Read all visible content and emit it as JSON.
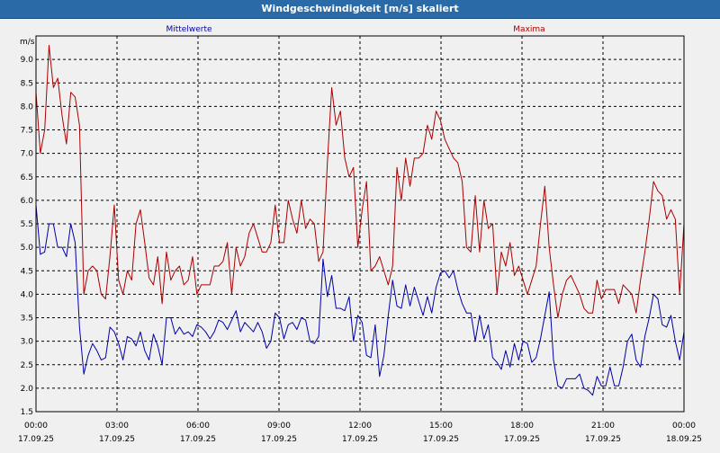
{
  "window": {
    "title": "Windgeschwindigkeit [m/s] skaliert"
  },
  "colors": {
    "mittel": "#0000aa",
    "maxima": "#aa0000",
    "grid": "#000000",
    "title_bar": "#2a6aa6"
  },
  "chart_data": {
    "type": "line",
    "title": "Windgeschwindigkeit [m/s] skaliert",
    "ylabel": "m/s",
    "xlabel": "",
    "ylim": [
      1.5,
      9.5
    ],
    "xlim_hours": [
      0,
      24
    ],
    "grid": true,
    "y_ticks": [
      "1.5",
      "2.0",
      "2.5",
      "3.0",
      "3.5",
      "4.0",
      "4.5",
      "5.0",
      "5.5",
      "6.0",
      "6.5",
      "7.0",
      "7.5",
      "8.0",
      "8.5",
      "9.0"
    ],
    "x_ticks": [
      {
        "time": "00:00",
        "date": "17.09.25"
      },
      {
        "time": "03:00",
        "date": "17.09.25"
      },
      {
        "time": "06:00",
        "date": "17.09.25"
      },
      {
        "time": "09:00",
        "date": "17.09.25"
      },
      {
        "time": "12:00",
        "date": "17.09.25"
      },
      {
        "time": "15:00",
        "date": "17.09.25"
      },
      {
        "time": "18:00",
        "date": "17.09.25"
      },
      {
        "time": "21:00",
        "date": "17.09.25"
      },
      {
        "time": "00:00",
        "date": "18.09.25"
      }
    ],
    "series": [
      {
        "name": "Mittelwerte",
        "values": [
          5.9,
          4.85,
          4.9,
          5.5,
          5.5,
          5.0,
          5.0,
          4.8,
          5.5,
          5.1,
          3.3,
          2.3,
          2.7,
          2.95,
          2.8,
          2.6,
          2.65,
          3.3,
          3.2,
          2.95,
          2.6,
          3.1,
          3.05,
          2.9,
          3.2,
          2.8,
          2.6,
          3.15,
          2.9,
          2.5,
          3.5,
          3.5,
          3.15,
          3.3,
          3.15,
          3.2,
          3.1,
          3.35,
          3.3,
          3.2,
          3.05,
          3.2,
          3.45,
          3.4,
          3.25,
          3.45,
          3.65,
          3.2,
          3.4,
          3.3,
          3.2,
          3.4,
          3.2,
          2.85,
          3.0,
          3.6,
          3.5,
          3.05,
          3.35,
          3.4,
          3.25,
          3.5,
          3.45,
          3.0,
          2.95,
          3.1,
          4.75,
          3.95,
          4.4,
          3.7,
          3.7,
          3.65,
          3.95,
          3.0,
          3.55,
          3.4,
          2.7,
          2.65,
          3.35,
          2.25,
          2.7,
          3.55,
          4.3,
          3.75,
          3.7,
          4.2,
          3.75,
          4.15,
          3.85,
          3.55,
          3.95,
          3.6,
          4.15,
          4.45,
          4.5,
          4.35,
          4.5,
          4.1,
          3.8,
          3.6,
          3.6,
          3.0,
          3.55,
          3.05,
          3.35,
          2.65,
          2.55,
          2.4,
          2.8,
          2.45,
          2.95,
          2.6,
          3.0,
          2.95,
          2.55,
          2.65,
          3.05,
          3.55,
          4.05,
          2.6,
          2.05,
          2.0,
          2.2,
          2.2,
          2.2,
          2.3,
          2.0,
          1.95,
          1.85,
          2.25,
          2.05,
          2.05,
          2.45,
          2.05,
          2.05,
          2.45,
          3.0,
          3.15,
          2.6,
          2.45,
          3.1,
          3.5,
          4.0,
          3.9,
          3.35,
          3.3,
          3.55,
          3.0,
          2.6,
          3.2
        ]
      },
      {
        "name": "Maxima",
        "values": [
          8.3,
          7.0,
          7.5,
          9.3,
          8.4,
          8.6,
          7.8,
          7.2,
          8.3,
          8.2,
          7.6,
          4.0,
          4.5,
          4.6,
          4.5,
          4.0,
          3.9,
          4.8,
          5.9,
          4.3,
          4.0,
          4.5,
          4.3,
          5.5,
          5.8,
          5.1,
          4.35,
          4.2,
          4.8,
          3.8,
          4.9,
          4.3,
          4.5,
          4.6,
          4.2,
          4.3,
          4.8,
          4.0,
          4.2,
          4.2,
          4.2,
          4.6,
          4.6,
          4.7,
          5.1,
          4.0,
          5.0,
          4.6,
          4.8,
          5.3,
          5.5,
          5.2,
          4.9,
          4.9,
          5.1,
          5.9,
          5.1,
          5.1,
          6.0,
          5.6,
          5.3,
          6.0,
          5.4,
          5.6,
          5.5,
          4.7,
          4.9,
          6.8,
          8.4,
          7.6,
          7.9,
          6.9,
          6.5,
          6.7,
          5.0,
          5.8,
          6.4,
          4.5,
          4.6,
          4.8,
          4.5,
          4.2,
          4.6,
          6.7,
          6.0,
          6.9,
          6.3,
          6.9,
          6.9,
          7.0,
          7.6,
          7.3,
          7.9,
          7.7,
          7.3,
          7.1,
          6.9,
          6.8,
          6.4,
          5.0,
          4.9,
          6.1,
          4.9,
          6.0,
          5.4,
          5.5,
          4.0,
          4.9,
          4.6,
          5.1,
          4.4,
          4.6,
          4.3,
          4.0,
          4.3,
          4.6,
          5.5,
          6.3,
          5.0,
          4.2,
          3.5,
          4.0,
          4.3,
          4.4,
          4.2,
          4.0,
          3.7,
          3.6,
          3.6,
          4.3,
          3.9,
          4.1,
          4.1,
          4.1,
          3.8,
          4.2,
          4.1,
          4.0,
          3.6,
          4.3,
          4.9,
          5.6,
          6.4,
          6.2,
          6.1,
          5.6,
          5.8,
          5.6,
          4.0,
          5.5
        ]
      }
    ]
  }
}
